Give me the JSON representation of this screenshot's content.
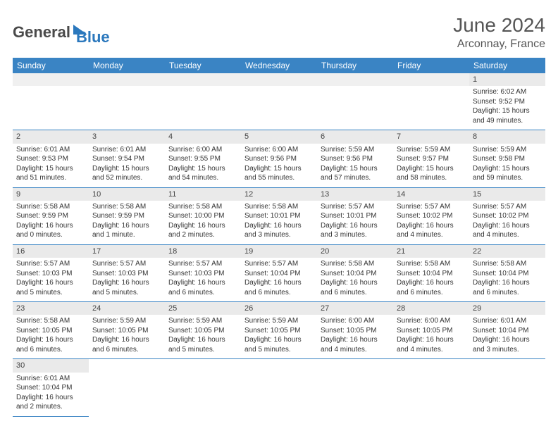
{
  "logo": {
    "part1": "General",
    "part2": "Blue"
  },
  "title": "June 2024",
  "location": "Arconnay, France",
  "colors": {
    "header_bg": "#3a84c4",
    "header_text": "#ffffff",
    "daynum_bg": "#eaeaea",
    "border": "#3a84c4",
    "logo_accent": "#2b78bd",
    "title_color": "#555555",
    "text_color": "#333333"
  },
  "weekdays": [
    "Sunday",
    "Monday",
    "Tuesday",
    "Wednesday",
    "Thursday",
    "Friday",
    "Saturday"
  ],
  "weeks": [
    [
      null,
      null,
      null,
      null,
      null,
      null,
      {
        "n": "1",
        "sunrise": "Sunrise: 6:02 AM",
        "sunset": "Sunset: 9:52 PM",
        "daylight": "Daylight: 15 hours and 49 minutes."
      }
    ],
    [
      {
        "n": "2",
        "sunrise": "Sunrise: 6:01 AM",
        "sunset": "Sunset: 9:53 PM",
        "daylight": "Daylight: 15 hours and 51 minutes."
      },
      {
        "n": "3",
        "sunrise": "Sunrise: 6:01 AM",
        "sunset": "Sunset: 9:54 PM",
        "daylight": "Daylight: 15 hours and 52 minutes."
      },
      {
        "n": "4",
        "sunrise": "Sunrise: 6:00 AM",
        "sunset": "Sunset: 9:55 PM",
        "daylight": "Daylight: 15 hours and 54 minutes."
      },
      {
        "n": "5",
        "sunrise": "Sunrise: 6:00 AM",
        "sunset": "Sunset: 9:56 PM",
        "daylight": "Daylight: 15 hours and 55 minutes."
      },
      {
        "n": "6",
        "sunrise": "Sunrise: 5:59 AM",
        "sunset": "Sunset: 9:56 PM",
        "daylight": "Daylight: 15 hours and 57 minutes."
      },
      {
        "n": "7",
        "sunrise": "Sunrise: 5:59 AM",
        "sunset": "Sunset: 9:57 PM",
        "daylight": "Daylight: 15 hours and 58 minutes."
      },
      {
        "n": "8",
        "sunrise": "Sunrise: 5:59 AM",
        "sunset": "Sunset: 9:58 PM",
        "daylight": "Daylight: 15 hours and 59 minutes."
      }
    ],
    [
      {
        "n": "9",
        "sunrise": "Sunrise: 5:58 AM",
        "sunset": "Sunset: 9:59 PM",
        "daylight": "Daylight: 16 hours and 0 minutes."
      },
      {
        "n": "10",
        "sunrise": "Sunrise: 5:58 AM",
        "sunset": "Sunset: 9:59 PM",
        "daylight": "Daylight: 16 hours and 1 minute."
      },
      {
        "n": "11",
        "sunrise": "Sunrise: 5:58 AM",
        "sunset": "Sunset: 10:00 PM",
        "daylight": "Daylight: 16 hours and 2 minutes."
      },
      {
        "n": "12",
        "sunrise": "Sunrise: 5:58 AM",
        "sunset": "Sunset: 10:01 PM",
        "daylight": "Daylight: 16 hours and 3 minutes."
      },
      {
        "n": "13",
        "sunrise": "Sunrise: 5:57 AM",
        "sunset": "Sunset: 10:01 PM",
        "daylight": "Daylight: 16 hours and 3 minutes."
      },
      {
        "n": "14",
        "sunrise": "Sunrise: 5:57 AM",
        "sunset": "Sunset: 10:02 PM",
        "daylight": "Daylight: 16 hours and 4 minutes."
      },
      {
        "n": "15",
        "sunrise": "Sunrise: 5:57 AM",
        "sunset": "Sunset: 10:02 PM",
        "daylight": "Daylight: 16 hours and 4 minutes."
      }
    ],
    [
      {
        "n": "16",
        "sunrise": "Sunrise: 5:57 AM",
        "sunset": "Sunset: 10:03 PM",
        "daylight": "Daylight: 16 hours and 5 minutes."
      },
      {
        "n": "17",
        "sunrise": "Sunrise: 5:57 AM",
        "sunset": "Sunset: 10:03 PM",
        "daylight": "Daylight: 16 hours and 5 minutes."
      },
      {
        "n": "18",
        "sunrise": "Sunrise: 5:57 AM",
        "sunset": "Sunset: 10:03 PM",
        "daylight": "Daylight: 16 hours and 6 minutes."
      },
      {
        "n": "19",
        "sunrise": "Sunrise: 5:57 AM",
        "sunset": "Sunset: 10:04 PM",
        "daylight": "Daylight: 16 hours and 6 minutes."
      },
      {
        "n": "20",
        "sunrise": "Sunrise: 5:58 AM",
        "sunset": "Sunset: 10:04 PM",
        "daylight": "Daylight: 16 hours and 6 minutes."
      },
      {
        "n": "21",
        "sunrise": "Sunrise: 5:58 AM",
        "sunset": "Sunset: 10:04 PM",
        "daylight": "Daylight: 16 hours and 6 minutes."
      },
      {
        "n": "22",
        "sunrise": "Sunrise: 5:58 AM",
        "sunset": "Sunset: 10:04 PM",
        "daylight": "Daylight: 16 hours and 6 minutes."
      }
    ],
    [
      {
        "n": "23",
        "sunrise": "Sunrise: 5:58 AM",
        "sunset": "Sunset: 10:05 PM",
        "daylight": "Daylight: 16 hours and 6 minutes."
      },
      {
        "n": "24",
        "sunrise": "Sunrise: 5:59 AM",
        "sunset": "Sunset: 10:05 PM",
        "daylight": "Daylight: 16 hours and 6 minutes."
      },
      {
        "n": "25",
        "sunrise": "Sunrise: 5:59 AM",
        "sunset": "Sunset: 10:05 PM",
        "daylight": "Daylight: 16 hours and 5 minutes."
      },
      {
        "n": "26",
        "sunrise": "Sunrise: 5:59 AM",
        "sunset": "Sunset: 10:05 PM",
        "daylight": "Daylight: 16 hours and 5 minutes."
      },
      {
        "n": "27",
        "sunrise": "Sunrise: 6:00 AM",
        "sunset": "Sunset: 10:05 PM",
        "daylight": "Daylight: 16 hours and 4 minutes."
      },
      {
        "n": "28",
        "sunrise": "Sunrise: 6:00 AM",
        "sunset": "Sunset: 10:05 PM",
        "daylight": "Daylight: 16 hours and 4 minutes."
      },
      {
        "n": "29",
        "sunrise": "Sunrise: 6:01 AM",
        "sunset": "Sunset: 10:04 PM",
        "daylight": "Daylight: 16 hours and 3 minutes."
      }
    ],
    [
      {
        "n": "30",
        "sunrise": "Sunrise: 6:01 AM",
        "sunset": "Sunset: 10:04 PM",
        "daylight": "Daylight: 16 hours and 2 minutes."
      },
      null,
      null,
      null,
      null,
      null,
      null
    ]
  ]
}
